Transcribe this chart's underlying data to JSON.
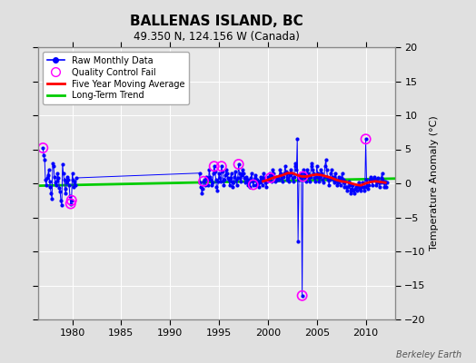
{
  "title": "BALLENAS ISLAND, BC",
  "subtitle": "49.350 N, 124.156 W (Canada)",
  "ylabel": "Temperature Anomaly (°C)",
  "watermark": "Berkeley Earth",
  "ylim": [
    -20,
    20
  ],
  "xlim": [
    1976.5,
    2013.0
  ],
  "xticks": [
    1980,
    1985,
    1990,
    1995,
    2000,
    2005,
    2010
  ],
  "yticks": [
    -20,
    -15,
    -10,
    -5,
    0,
    5,
    10,
    15,
    20
  ],
  "bg_color": "#e0e0e0",
  "plot_bg_color": "#e8e8e8",
  "grid_color": "#ffffff",
  "raw_color": "#0000ff",
  "ma_color": "#ff0000",
  "trend_color": "#00cc00",
  "qc_color": "#ff00ff",
  "raw_data": [
    [
      1977.0,
      5.2
    ],
    [
      1977.08,
      4.1
    ],
    [
      1977.17,
      3.5
    ],
    [
      1977.25,
      0.5
    ],
    [
      1977.33,
      -0.2
    ],
    [
      1977.42,
      0.8
    ],
    [
      1977.5,
      1.2
    ],
    [
      1977.58,
      2.0
    ],
    [
      1977.67,
      0.3
    ],
    [
      1977.75,
      -0.5
    ],
    [
      1977.83,
      -1.5
    ],
    [
      1977.92,
      -2.2
    ],
    [
      1978.0,
      3.0
    ],
    [
      1978.08,
      2.5
    ],
    [
      1978.17,
      1.0
    ],
    [
      1978.25,
      0.2
    ],
    [
      1978.33,
      -0.3
    ],
    [
      1978.42,
      0.4
    ],
    [
      1978.5,
      1.5
    ],
    [
      1978.58,
      0.8
    ],
    [
      1978.67,
      -0.6
    ],
    [
      1978.75,
      -1.2
    ],
    [
      1978.83,
      -2.5
    ],
    [
      1978.92,
      -3.2
    ],
    [
      1979.0,
      2.8
    ],
    [
      1979.08,
      1.5
    ],
    [
      1979.17,
      0.5
    ],
    [
      1979.25,
      -0.8
    ],
    [
      1979.33,
      -1.5
    ],
    [
      1979.42,
      0.2
    ],
    [
      1979.5,
      1.0
    ],
    [
      1979.58,
      0.5
    ],
    [
      1979.67,
      -0.3
    ],
    [
      1979.75,
      -1.8
    ],
    [
      1979.83,
      -3.0
    ],
    [
      1979.92,
      -2.5
    ],
    [
      1980.0,
      1.5
    ],
    [
      1980.08,
      0.5
    ],
    [
      1980.17,
      -0.5
    ],
    [
      1980.25,
      0.3
    ],
    [
      1980.33,
      -0.2
    ],
    [
      1980.42,
      0.8
    ],
    [
      1993.0,
      1.5
    ],
    [
      1993.08,
      0.2
    ],
    [
      1993.17,
      -0.5
    ],
    [
      1993.25,
      -1.5
    ],
    [
      1993.33,
      -0.8
    ],
    [
      1993.42,
      0.3
    ],
    [
      1993.5,
      0.5
    ],
    [
      1993.58,
      -0.3
    ],
    [
      1993.67,
      1.0
    ],
    [
      1993.75,
      0.8
    ],
    [
      1993.83,
      -0.2
    ],
    [
      1993.92,
      0.5
    ],
    [
      1994.0,
      2.0
    ],
    [
      1994.08,
      1.0
    ],
    [
      1994.17,
      0.5
    ],
    [
      1994.25,
      -0.3
    ],
    [
      1994.33,
      0.2
    ],
    [
      1994.42,
      1.5
    ],
    [
      1994.5,
      2.5
    ],
    [
      1994.58,
      1.8
    ],
    [
      1994.67,
      0.5
    ],
    [
      1994.75,
      -0.5
    ],
    [
      1994.83,
      -1.0
    ],
    [
      1994.92,
      0.3
    ],
    [
      1995.0,
      1.5
    ],
    [
      1995.08,
      0.8
    ],
    [
      1995.17,
      0.3
    ],
    [
      1995.25,
      2.5
    ],
    [
      1995.33,
      1.8
    ],
    [
      1995.42,
      0.5
    ],
    [
      1995.5,
      -0.2
    ],
    [
      1995.58,
      0.5
    ],
    [
      1995.67,
      1.2
    ],
    [
      1995.75,
      2.0
    ],
    [
      1995.83,
      1.5
    ],
    [
      1995.92,
      0.8
    ],
    [
      1996.0,
      0.5
    ],
    [
      1996.08,
      -0.3
    ],
    [
      1996.17,
      0.8
    ],
    [
      1996.25,
      1.5
    ],
    [
      1996.33,
      0.3
    ],
    [
      1996.42,
      -0.5
    ],
    [
      1996.5,
      0.2
    ],
    [
      1996.58,
      1.0
    ],
    [
      1996.67,
      1.8
    ],
    [
      1996.75,
      0.5
    ],
    [
      1996.83,
      -0.2
    ],
    [
      1996.92,
      0.8
    ],
    [
      1997.0,
      2.8
    ],
    [
      1997.08,
      1.5
    ],
    [
      1997.17,
      0.8
    ],
    [
      1997.25,
      0.3
    ],
    [
      1997.33,
      1.2
    ],
    [
      1997.42,
      2.0
    ],
    [
      1997.5,
      1.5
    ],
    [
      1997.58,
      0.8
    ],
    [
      1997.67,
      0.2
    ],
    [
      1997.75,
      1.0
    ],
    [
      1997.83,
      0.5
    ],
    [
      1997.92,
      -0.3
    ],
    [
      1998.0,
      0.5
    ],
    [
      1998.08,
      0.2
    ],
    [
      1998.17,
      -0.5
    ],
    [
      1998.25,
      0.8
    ],
    [
      1998.33,
      1.5
    ],
    [
      1998.42,
      0.3
    ],
    [
      1998.5,
      -0.2
    ],
    [
      1998.58,
      0.5
    ],
    [
      1998.67,
      1.2
    ],
    [
      1998.75,
      0.8
    ],
    [
      1998.83,
      -0.3
    ],
    [
      1998.92,
      0.5
    ],
    [
      1999.0,
      0.3
    ],
    [
      1999.08,
      -0.5
    ],
    [
      1999.17,
      0.2
    ],
    [
      1999.25,
      1.0
    ],
    [
      1999.33,
      0.5
    ],
    [
      1999.42,
      -0.3
    ],
    [
      1999.5,
      0.8
    ],
    [
      1999.58,
      1.5
    ],
    [
      1999.67,
      0.5
    ],
    [
      1999.75,
      0.2
    ],
    [
      1999.83,
      -0.5
    ],
    [
      1999.92,
      0.3
    ],
    [
      2000.0,
      1.0
    ],
    [
      2000.08,
      0.5
    ],
    [
      2000.17,
      1.5
    ],
    [
      2000.25,
      0.8
    ],
    [
      2000.33,
      0.3
    ],
    [
      2000.42,
      1.2
    ],
    [
      2000.5,
      2.0
    ],
    [
      2000.58,
      1.5
    ],
    [
      2000.67,
      0.8
    ],
    [
      2000.75,
      0.3
    ],
    [
      2000.83,
      1.0
    ],
    [
      2000.92,
      0.5
    ],
    [
      2001.0,
      0.8
    ],
    [
      2001.08,
      0.5
    ],
    [
      2001.17,
      1.2
    ],
    [
      2001.25,
      2.0
    ],
    [
      2001.33,
      1.5
    ],
    [
      2001.42,
      0.8
    ],
    [
      2001.5,
      0.3
    ],
    [
      2001.58,
      1.0
    ],
    [
      2001.67,
      1.5
    ],
    [
      2001.75,
      2.5
    ],
    [
      2001.83,
      1.8
    ],
    [
      2001.92,
      0.5
    ],
    [
      2002.0,
      1.5
    ],
    [
      2002.08,
      0.8
    ],
    [
      2002.17,
      0.3
    ],
    [
      2002.25,
      1.2
    ],
    [
      2002.33,
      2.0
    ],
    [
      2002.42,
      1.5
    ],
    [
      2002.5,
      0.8
    ],
    [
      2002.58,
      0.3
    ],
    [
      2002.67,
      1.0
    ],
    [
      2002.75,
      2.5
    ],
    [
      2002.83,
      3.0
    ],
    [
      2002.92,
      2.0
    ],
    [
      2003.0,
      6.5
    ],
    [
      2003.08,
      -8.5
    ],
    [
      2003.17,
      0.5
    ],
    [
      2003.25,
      1.0
    ],
    [
      2003.33,
      1.5
    ],
    [
      2003.42,
      0.8
    ],
    [
      2003.5,
      -16.5
    ],
    [
      2003.58,
      1.0
    ],
    [
      2003.67,
      2.0
    ],
    [
      2003.75,
      1.5
    ],
    [
      2003.83,
      0.8
    ],
    [
      2003.92,
      0.3
    ],
    [
      2004.0,
      2.0
    ],
    [
      2004.08,
      1.5
    ],
    [
      2004.17,
      0.8
    ],
    [
      2004.25,
      0.3
    ],
    [
      2004.33,
      1.0
    ],
    [
      2004.42,
      2.5
    ],
    [
      2004.5,
      3.0
    ],
    [
      2004.58,
      2.0
    ],
    [
      2004.67,
      1.5
    ],
    [
      2004.75,
      0.8
    ],
    [
      2004.83,
      0.3
    ],
    [
      2004.92,
      1.0
    ],
    [
      2005.0,
      2.5
    ],
    [
      2005.08,
      1.5
    ],
    [
      2005.17,
      0.8
    ],
    [
      2005.25,
      0.3
    ],
    [
      2005.33,
      1.0
    ],
    [
      2005.42,
      2.0
    ],
    [
      2005.5,
      1.5
    ],
    [
      2005.58,
      0.5
    ],
    [
      2005.67,
      0.2
    ],
    [
      2005.75,
      1.0
    ],
    [
      2005.83,
      2.5
    ],
    [
      2005.92,
      3.5
    ],
    [
      2006.0,
      2.0
    ],
    [
      2006.08,
      1.0
    ],
    [
      2006.17,
      0.5
    ],
    [
      2006.25,
      -0.3
    ],
    [
      2006.33,
      0.5
    ],
    [
      2006.42,
      1.5
    ],
    [
      2006.5,
      2.0
    ],
    [
      2006.58,
      1.0
    ],
    [
      2006.67,
      0.5
    ],
    [
      2006.75,
      0.2
    ],
    [
      2006.83,
      1.0
    ],
    [
      2006.92,
      1.5
    ],
    [
      2007.0,
      0.5
    ],
    [
      2007.08,
      -0.3
    ],
    [
      2007.17,
      0.2
    ],
    [
      2007.25,
      1.0
    ],
    [
      2007.33,
      0.5
    ],
    [
      2007.42,
      -0.3
    ],
    [
      2007.5,
      0.8
    ],
    [
      2007.58,
      1.5
    ],
    [
      2007.67,
      0.5
    ],
    [
      2007.75,
      0.2
    ],
    [
      2007.83,
      -0.5
    ],
    [
      2007.92,
      0.3
    ],
    [
      2008.0,
      -0.5
    ],
    [
      2008.08,
      -1.0
    ],
    [
      2008.17,
      -0.5
    ],
    [
      2008.25,
      0.3
    ],
    [
      2008.33,
      -0.2
    ],
    [
      2008.42,
      -1.0
    ],
    [
      2008.5,
      -1.5
    ],
    [
      2008.58,
      -0.8
    ],
    [
      2008.67,
      -0.3
    ],
    [
      2008.75,
      -1.0
    ],
    [
      2008.83,
      -1.5
    ],
    [
      2008.92,
      -0.8
    ],
    [
      2009.0,
      -0.5
    ],
    [
      2009.08,
      -1.0
    ],
    [
      2009.17,
      -0.5
    ],
    [
      2009.25,
      0.2
    ],
    [
      2009.33,
      -0.3
    ],
    [
      2009.42,
      -0.8
    ],
    [
      2009.5,
      -1.0
    ],
    [
      2009.58,
      -0.5
    ],
    [
      2009.67,
      0.2
    ],
    [
      2009.75,
      -0.5
    ],
    [
      2009.83,
      -1.0
    ],
    [
      2009.92,
      -0.5
    ],
    [
      2010.0,
      6.5
    ],
    [
      2010.08,
      0.5
    ],
    [
      2010.17,
      -0.3
    ],
    [
      2010.25,
      -0.8
    ],
    [
      2010.33,
      -0.3
    ],
    [
      2010.42,
      0.5
    ],
    [
      2010.5,
      1.0
    ],
    [
      2010.58,
      0.5
    ],
    [
      2010.67,
      -0.3
    ],
    [
      2010.75,
      0.5
    ],
    [
      2010.83,
      1.0
    ],
    [
      2010.92,
      0.5
    ],
    [
      2011.0,
      0.5
    ],
    [
      2011.08,
      -0.3
    ],
    [
      2011.17,
      0.2
    ],
    [
      2011.25,
      0.8
    ],
    [
      2011.33,
      0.3
    ],
    [
      2011.42,
      -0.5
    ],
    [
      2011.5,
      0.2
    ],
    [
      2011.58,
      0.8
    ],
    [
      2011.67,
      1.5
    ],
    [
      2011.75,
      0.5
    ],
    [
      2011.83,
      0.2
    ],
    [
      2011.92,
      -0.5
    ],
    [
      2012.0,
      0.3
    ],
    [
      2012.08,
      -0.5
    ],
    [
      2012.17,
      0.2
    ]
  ],
  "qc_fail_points": [
    [
      1977.0,
      5.2
    ],
    [
      1979.83,
      -3.0
    ],
    [
      1979.92,
      -2.5
    ],
    [
      1993.42,
      0.3
    ],
    [
      1994.5,
      2.5
    ],
    [
      1995.25,
      2.5
    ],
    [
      1997.0,
      2.8
    ],
    [
      1998.5,
      -0.2
    ],
    [
      2000.25,
      0.8
    ],
    [
      2003.5,
      -16.5
    ],
    [
      2003.58,
      1.0
    ],
    [
      2010.0,
      6.5
    ]
  ],
  "moving_avg": [
    [
      1999.5,
      0.3
    ],
    [
      2000.0,
      0.5
    ],
    [
      2000.5,
      0.8
    ],
    [
      2001.0,
      1.0
    ],
    [
      2001.5,
      1.2
    ],
    [
      2002.0,
      1.5
    ],
    [
      2002.5,
      1.5
    ],
    [
      2003.0,
      1.2
    ],
    [
      2003.5,
      1.0
    ],
    [
      2004.0,
      1.0
    ],
    [
      2004.5,
      1.2
    ],
    [
      2005.0,
      1.3
    ],
    [
      2005.5,
      1.2
    ],
    [
      2006.0,
      1.0
    ],
    [
      2006.5,
      0.8
    ],
    [
      2007.0,
      0.5
    ],
    [
      2007.5,
      0.3
    ],
    [
      2008.0,
      0.2
    ],
    [
      2008.5,
      0.0
    ],
    [
      2009.0,
      -0.2
    ],
    [
      2009.5,
      -0.3
    ],
    [
      2010.0,
      0.0
    ],
    [
      2010.5,
      0.2
    ],
    [
      2011.0,
      0.3
    ],
    [
      2011.5,
      0.2
    ],
    [
      2012.0,
      0.1
    ]
  ],
  "trend_x": [
    1976.5,
    2013.0
  ],
  "trend_y": [
    -0.35,
    0.7
  ]
}
